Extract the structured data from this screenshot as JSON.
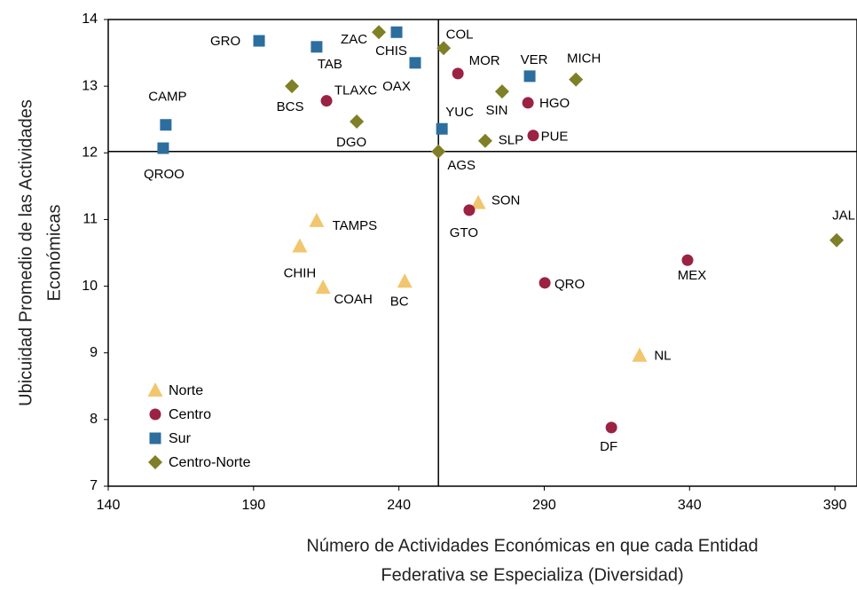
{
  "chart_data": {
    "type": "scatter",
    "xlabel": [
      "Número de Actividades Económicas en que cada Entidad",
      "Federativa se Especializa (Diversidad)"
    ],
    "ylabel": [
      "Ubicuidad Promedio de las Actividades",
      "Económicas"
    ],
    "xlim": [
      140,
      397.6
    ],
    "ylim": [
      7,
      14
    ],
    "xticks": [
      140,
      190,
      240,
      290,
      340,
      390
    ],
    "yticks": [
      7,
      8,
      9,
      10,
      11,
      12,
      13,
      14
    ],
    "reference_lines": {
      "x": 253.6,
      "y": 12.02
    },
    "legend": "lower-left",
    "series": [
      {
        "name": "Norte",
        "marker": "triangle",
        "color": "#f2c66e",
        "labels": [
          "TAMPS",
          "CHIH",
          "COAH",
          "BC",
          "SON",
          "NL"
        ],
        "x": [
          211.7,
          205.9,
          213.9,
          242,
          267.3,
          322.8
        ],
        "values": [
          10.98,
          10.6,
          9.98,
          10.07,
          11.25,
          8.96
        ]
      },
      {
        "name": "Centro",
        "marker": "circle",
        "color": "#9b2242",
        "labels": [
          "TLAXC",
          "MOR",
          "HGO",
          "PUE",
          "GTO",
          "QRO",
          "MEX",
          "DF"
        ],
        "x": [
          215.1,
          260.3,
          284.4,
          286.2,
          264.2,
          290.2,
          339.3,
          313.1
        ],
        "values": [
          12.78,
          13.19,
          12.75,
          12.26,
          11.14,
          10.05,
          10.39,
          7.88
        ]
      },
      {
        "name": "Sur",
        "marker": "square",
        "color": "#2c6e9e",
        "labels": [
          "GRO",
          "TAB",
          "CHIS",
          "OAX",
          "CAMP",
          "QROO",
          "VER",
          "YUC"
        ],
        "x": [
          191.9,
          211.7,
          239.2,
          245.6,
          159.8,
          158.9,
          285,
          254.8
        ],
        "values": [
          13.68,
          13.59,
          13.81,
          13.35,
          12.42,
          12.07,
          13.15,
          12.36
        ]
      },
      {
        "name": "Centro-Norte",
        "marker": "diamond",
        "color": "#7f7f27",
        "labels": [
          "ZAC",
          "COL",
          "BCS",
          "DGO",
          "SIN",
          "MICH",
          "SLP",
          "AGS",
          "JAL"
        ],
        "x": [
          233.1,
          255.4,
          203.2,
          225.5,
          275.5,
          300.9,
          269.7,
          253.6,
          390.6
        ],
        "values": [
          13.81,
          13.57,
          13.0,
          12.47,
          12.92,
          13.1,
          12.18,
          12.02,
          10.69
        ]
      }
    ]
  }
}
